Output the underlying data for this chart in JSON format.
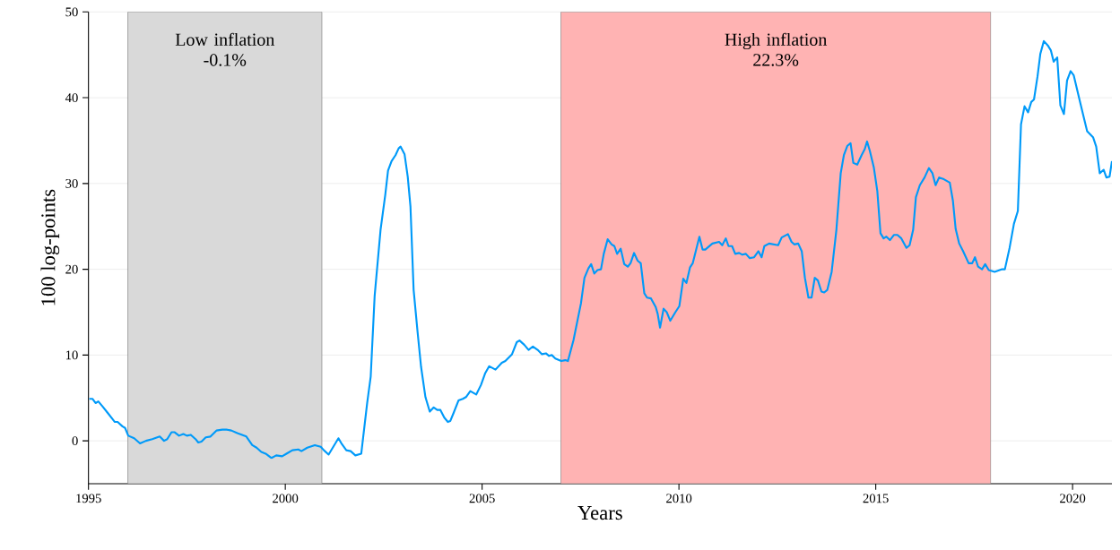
{
  "chart_data": {
    "type": "line",
    "xlabel": "Years",
    "ylabel": "100 log-points",
    "xlim": [
      1995,
      2021
    ],
    "ylim": [
      -5,
      50
    ],
    "xticks": [
      1995,
      2000,
      2005,
      2010,
      2015,
      2020
    ],
    "yticks": [
      0,
      10,
      20,
      30,
      40,
      50
    ],
    "grid": "y",
    "bands": [
      {
        "axis": "x",
        "from": 1996.0,
        "to": 2000.93,
        "label": "Low inflation -0.1%",
        "color": "#d9d9d9"
      },
      {
        "axis": "x",
        "from": 2007.0,
        "to": 2017.92,
        "label": "High inflation 22.3%",
        "color": "#ffb3b3"
      }
    ],
    "series": [
      {
        "color": "#009af9",
        "x": [
          1995.02,
          1995.1,
          1995.18,
          1995.25,
          1995.36,
          1995.48,
          1995.67,
          1995.74,
          1995.86,
          1995.93,
          1996.01,
          1996.16,
          1996.31,
          1996.46,
          1996.62,
          1996.81,
          1996.92,
          1997.0,
          1997.11,
          1997.19,
          1997.3,
          1997.41,
          1997.5,
          1997.6,
          1997.72,
          1997.79,
          1997.87,
          1997.98,
          1998.1,
          1998.25,
          1998.4,
          1998.51,
          1998.63,
          1998.78,
          1999.01,
          1999.16,
          1999.27,
          1999.39,
          1999.5,
          1999.65,
          1999.77,
          1999.92,
          2000.03,
          2000.18,
          2000.33,
          2000.41,
          2000.56,
          2000.75,
          2000.9,
          2000.98,
          2001.1,
          2001.35,
          2001.44,
          2001.55,
          2001.66,
          2001.78,
          2001.93,
          2002.08,
          2002.17,
          2002.27,
          2002.42,
          2002.54,
          2002.61,
          2002.7,
          2002.8,
          2002.88,
          2002.93,
          2003.03,
          2003.11,
          2003.18,
          2003.26,
          2003.36,
          2003.45,
          2003.56,
          2003.67,
          2003.77,
          2003.86,
          2003.94,
          2004.04,
          2004.13,
          2004.19,
          2004.28,
          2004.4,
          2004.51,
          2004.59,
          2004.7,
          2004.85,
          2004.97,
          2005.08,
          2005.18,
          2005.34,
          2005.5,
          2005.59,
          2005.76,
          2005.88,
          2005.95,
          2006.07,
          2006.18,
          2006.29,
          2006.41,
          2006.52,
          2006.62,
          2006.7,
          2006.77,
          2006.86,
          2007.01,
          2007.11,
          2007.18,
          2007.32,
          2007.51,
          2007.6,
          2007.7,
          2007.77,
          2007.85,
          2007.93,
          2008.02,
          2008.09,
          2008.19,
          2008.29,
          2008.36,
          2008.43,
          2008.52,
          2008.61,
          2008.7,
          2008.77,
          2008.86,
          2008.95,
          2009.03,
          2009.12,
          2009.19,
          2009.29,
          2009.41,
          2009.46,
          2009.52,
          2009.61,
          2009.69,
          2009.78,
          2009.91,
          2010.01,
          2010.11,
          2010.19,
          2010.28,
          2010.35,
          2010.52,
          2010.6,
          2010.67,
          2010.85,
          2011.02,
          2011.1,
          2011.19,
          2011.26,
          2011.35,
          2011.43,
          2011.53,
          2011.61,
          2011.7,
          2011.8,
          2011.91,
          2012.02,
          2012.1,
          2012.17,
          2012.29,
          2012.52,
          2012.61,
          2012.77,
          2012.86,
          2012.93,
          2013.03,
          2013.12,
          2013.2,
          2013.29,
          2013.37,
          2013.45,
          2013.53,
          2013.62,
          2013.69,
          2013.77,
          2013.88,
          2014.0,
          2014.11,
          2014.19,
          2014.28,
          2014.36,
          2014.43,
          2014.53,
          2014.64,
          2014.72,
          2014.78,
          2014.85,
          2014.95,
          2015.04,
          2015.12,
          2015.2,
          2015.27,
          2015.36,
          2015.46,
          2015.55,
          2015.65,
          2015.78,
          2015.86,
          2015.95,
          2016.02,
          2016.12,
          2016.24,
          2016.35,
          2016.44,
          2016.52,
          2016.61,
          2016.73,
          2016.88,
          2016.96,
          2017.03,
          2017.12,
          2017.22,
          2017.36,
          2017.45,
          2017.52,
          2017.6,
          2017.7,
          2017.78,
          2017.87,
          2018.02,
          2018.21,
          2018.28,
          2018.4,
          2018.51,
          2018.61,
          2018.69,
          2018.78,
          2018.87,
          2018.95,
          2019.02,
          2019.11,
          2019.18,
          2019.27,
          2019.37,
          2019.45,
          2019.52,
          2019.61,
          2019.69,
          2019.78,
          2019.86,
          2019.95,
          2020.03,
          2020.18,
          2020.28,
          2020.37,
          2020.52,
          2020.6,
          2020.69,
          2020.79,
          2020.86,
          2020.94,
          2021.0
        ],
        "values": [
          4.9,
          4.9,
          4.4,
          4.6,
          4.0,
          3.3,
          2.2,
          2.2,
          1.7,
          1.5,
          0.6,
          0.3,
          -0.3,
          0.0,
          0.2,
          0.5,
          0.0,
          0.2,
          1.0,
          1.0,
          0.6,
          0.8,
          0.6,
          0.7,
          0.2,
          -0.2,
          -0.1,
          0.4,
          0.5,
          1.2,
          1.3,
          1.3,
          1.2,
          0.9,
          0.5,
          -0.5,
          -0.8,
          -1.3,
          -1.5,
          -2.0,
          -1.7,
          -1.8,
          -1.5,
          -1.1,
          -1.0,
          -1.2,
          -0.8,
          -0.5,
          -0.7,
          -1.1,
          -1.6,
          0.3,
          -0.4,
          -1.1,
          -1.2,
          -1.7,
          -1.5,
          4.4,
          7.5,
          16.9,
          24.6,
          28.7,
          31.5,
          32.6,
          33.3,
          34.1,
          34.3,
          33.4,
          30.8,
          27.3,
          17.6,
          12.7,
          8.6,
          5.1,
          3.4,
          3.9,
          3.6,
          3.6,
          2.7,
          2.2,
          2.3,
          3.3,
          4.7,
          4.9,
          5.1,
          5.8,
          5.4,
          6.5,
          7.9,
          8.7,
          8.3,
          9.1,
          9.3,
          10.1,
          11.5,
          11.7,
          11.2,
          10.6,
          11.0,
          10.6,
          10.1,
          10.2,
          9.9,
          10.0,
          9.6,
          9.3,
          9.4,
          9.3,
          11.7,
          16.0,
          19.0,
          20.1,
          20.6,
          19.5,
          19.9,
          20.0,
          21.8,
          23.5,
          22.9,
          22.7,
          21.8,
          22.4,
          20.6,
          20.3,
          20.7,
          21.9,
          21.0,
          20.7,
          17.2,
          16.7,
          16.6,
          15.6,
          14.8,
          13.2,
          15.4,
          15.0,
          14.0,
          15.0,
          15.7,
          18.9,
          18.4,
          20.2,
          20.7,
          23.8,
          22.3,
          22.3,
          23.0,
          23.2,
          22.8,
          23.6,
          22.7,
          22.7,
          21.8,
          21.9,
          21.7,
          21.8,
          21.3,
          21.4,
          22.1,
          21.4,
          22.7,
          23.0,
          22.8,
          23.7,
          24.1,
          23.2,
          22.9,
          23.0,
          22.1,
          19.0,
          16.7,
          16.7,
          19.0,
          18.7,
          17.4,
          17.3,
          17.6,
          19.7,
          24.6,
          31.2,
          33.3,
          34.4,
          34.7,
          32.4,
          32.2,
          33.3,
          34.0,
          34.9,
          33.8,
          31.9,
          29.1,
          24.2,
          23.6,
          23.8,
          23.4,
          24.0,
          24.0,
          23.6,
          22.5,
          22.8,
          24.6,
          28.4,
          29.8,
          30.7,
          31.8,
          31.2,
          29.8,
          30.7,
          30.5,
          30.1,
          28.0,
          24.7,
          23.0,
          22.1,
          20.7,
          20.7,
          21.4,
          20.3,
          20.0,
          20.6,
          19.9,
          19.7,
          20.0,
          20.0,
          22.5,
          25.3,
          26.8,
          36.9,
          39.0,
          38.3,
          39.5,
          39.8,
          42.5,
          45.1,
          46.6,
          46.1,
          45.5,
          44.2,
          44.7,
          39.1,
          38.1,
          42.0,
          43.1,
          42.6,
          39.7,
          37.8,
          36.1,
          35.4,
          34.3,
          31.2,
          31.6,
          30.7,
          30.8,
          32.6
        ]
      }
    ]
  }
}
